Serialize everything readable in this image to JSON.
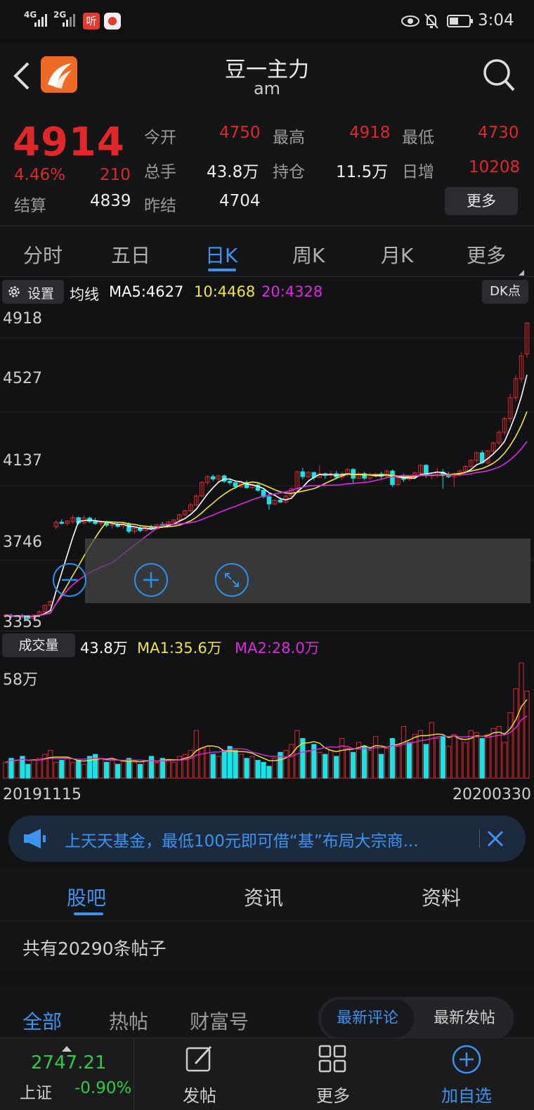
{
  "status_bar": {
    "signal_a": "4G",
    "signal_b": "2G",
    "app_badge": "听",
    "time": "3:04"
  },
  "header": {
    "title": "豆一主力",
    "subtitle": "am"
  },
  "quote": {
    "price": "4914",
    "change_pct": "4.46%",
    "change": "210",
    "settle_label": "结算",
    "settle": "4839",
    "open_label": "今开",
    "open": "4750",
    "high_label": "最高",
    "high": "4918",
    "low_label": "最低",
    "low": "4730",
    "volume_label": "总手",
    "volume": "43.8万",
    "oi_label": "持仓",
    "oi": "11.5万",
    "daily_inc_label": "日增",
    "daily_inc": "10208",
    "prev_settle_label": "昨结",
    "prev_settle": "4704",
    "more_label": "更多"
  },
  "tabs": [
    {
      "label": "分时"
    },
    {
      "label": "五日"
    },
    {
      "label": "日K"
    },
    {
      "label": "周K"
    },
    {
      "label": "月K"
    },
    {
      "label": "更多"
    }
  ],
  "ma_bar": {
    "settings_label": "设置",
    "ma_label": "均线",
    "ma5": "MA5:4627",
    "ma10": "10:4468",
    "ma20": "20:4328",
    "dk_label": "DK点"
  },
  "price_axis": [
    "4918",
    "4527",
    "4137",
    "3746",
    "3355"
  ],
  "volume_bar": {
    "label": "成交量",
    "value": "43.8万",
    "ma1": "MA1:35.6万",
    "ma2": "MA2:28.0万",
    "axis_max": "58万"
  },
  "date_axis": {
    "start": "20191115",
    "end": "20200330"
  },
  "banner": {
    "text": "上天天基金，最低100元即可借“基”布局大宗商..."
  },
  "section_tabs": [
    {
      "label": "股吧"
    },
    {
      "label": "资讯"
    },
    {
      "label": "资料"
    }
  ],
  "post_count": "共有20290条帖子",
  "filter": {
    "all": "全部",
    "hot": "热帖",
    "wealth": "财富号",
    "latest_comment": "最新评论",
    "latest_post": "最新发帖"
  },
  "bottom_nav": {
    "index_value": "2747.21",
    "index_name": "上证",
    "index_change": "-0.90%",
    "post": "发帖",
    "more": "更多",
    "add": "加自选"
  },
  "colors": {
    "up": "#e0272a",
    "down": "#19e3e6",
    "ma5": "#ffffff",
    "ma10": "#f3e531",
    "ma20": "#e028e0",
    "accent": "#2e8fe8"
  },
  "chart_data": {
    "type": "candlestick",
    "ylim": [
      3330,
      4960
    ],
    "x": {
      "start": "20191115",
      "end": "20200330"
    },
    "candles": [
      [
        3372,
        3380,
        3360,
        3375
      ],
      [
        3372,
        3382,
        3360,
        3368
      ],
      [
        3368,
        3376,
        3358,
        3372
      ],
      [
        3372,
        3380,
        3360,
        3366
      ],
      [
        3366,
        3374,
        3352,
        3356
      ],
      [
        3356,
        3378,
        3350,
        3374
      ],
      [
        3374,
        3400,
        3366,
        3392
      ],
      [
        3392,
        3430,
        3388,
        3426
      ],
      [
        3426,
        3452,
        3420,
        3446
      ],
      [
        3840,
        3875,
        3826,
        3864
      ],
      [
        3864,
        3880,
        3852,
        3858
      ],
      [
        3858,
        3874,
        3846,
        3870
      ],
      [
        3868,
        3902,
        3856,
        3888
      ],
      [
        3888,
        3892,
        3850,
        3860
      ],
      [
        3860,
        3900,
        3852,
        3886
      ],
      [
        3886,
        3894,
        3860,
        3868
      ],
      [
        3868,
        3888,
        3850,
        3858
      ],
      [
        3858,
        3872,
        3844,
        3866
      ],
      [
        3866,
        3872,
        3838,
        3848
      ],
      [
        3848,
        3860,
        3830,
        3852
      ],
      [
        3852,
        3864,
        3836,
        3842
      ],
      [
        3842,
        3858,
        3830,
        3856
      ],
      [
        3856,
        3864,
        3806,
        3816
      ],
      [
        3816,
        3836,
        3802,
        3832
      ],
      [
        3832,
        3846,
        3812,
        3820
      ],
      [
        3820,
        3842,
        3816,
        3838
      ],
      [
        3838,
        3850,
        3822,
        3830
      ],
      [
        3830,
        3856,
        3826,
        3852
      ],
      [
        3852,
        3866,
        3836,
        3848
      ],
      [
        3848,
        3870,
        3844,
        3866
      ],
      [
        3866,
        3880,
        3860,
        3876
      ],
      [
        3876,
        3908,
        3866,
        3904
      ],
      [
        3904,
        3930,
        3896,
        3924
      ],
      [
        3924,
        3966,
        3916,
        3956
      ],
      [
        3956,
        4010,
        3950,
        4002
      ],
      [
        4002,
        4080,
        3996,
        4074
      ],
      [
        4074,
        4112,
        4060,
        4104
      ],
      [
        4104,
        4116,
        4080,
        4092
      ],
      [
        4092,
        4114,
        4070,
        4108
      ],
      [
        4108,
        4116,
        4070,
        4080
      ],
      [
        4080,
        4098,
        4060,
        4072
      ],
      [
        4072,
        4084,
        4040,
        4052
      ],
      [
        4052,
        4080,
        4044,
        4074
      ],
      [
        4074,
        4084,
        4040,
        4046
      ],
      [
        4046,
        4070,
        4040,
        4060
      ],
      [
        4060,
        4074,
        4024,
        4032
      ],
      [
        4032,
        4040,
        3990,
        3998
      ],
      [
        3998,
        4020,
        3930,
        3960
      ],
      [
        3960,
        3984,
        3954,
        3980
      ],
      [
        3980,
        3996,
        3966,
        3970
      ],
      [
        3970,
        4010,
        3962,
        4002
      ],
      [
        4002,
        4048,
        3996,
        4040
      ],
      [
        4040,
        4136,
        4032,
        4130
      ],
      [
        4130,
        4150,
        4090,
        4104
      ],
      [
        4104,
        4134,
        4098,
        4126
      ],
      [
        4126,
        4130,
        4084,
        4100
      ],
      [
        4100,
        4166,
        4096,
        4120
      ],
      [
        4120,
        4126,
        4092,
        4112
      ],
      [
        4112,
        4136,
        4096,
        4120
      ],
      [
        4120,
        4134,
        4090,
        4102
      ],
      [
        4102,
        4130,
        4088,
        4120
      ],
      [
        4120,
        4150,
        4104,
        4142
      ],
      [
        4142,
        4150,
        4070,
        4096
      ],
      [
        4096,
        4128,
        4090,
        4120
      ],
      [
        4120,
        4130,
        4084,
        4096
      ],
      [
        4096,
        4126,
        4088,
        4112
      ],
      [
        4112,
        4126,
        4100,
        4118
      ],
      [
        4118,
        4130,
        4090,
        4106
      ],
      [
        4106,
        4142,
        4100,
        4134
      ],
      [
        4134,
        4142,
        4050,
        4062
      ],
      [
        4062,
        4104,
        4056,
        4098
      ],
      [
        4098,
        4120,
        4076,
        4090
      ],
      [
        4090,
        4106,
        4082,
        4102
      ],
      [
        4102,
        4130,
        4096,
        4124
      ],
      [
        4124,
        4170,
        4116,
        4164
      ],
      [
        4164,
        4170,
        4098,
        4112
      ],
      [
        4112,
        4120,
        4090,
        4114
      ],
      [
        4114,
        4150,
        4100,
        4128
      ],
      [
        4128,
        4144,
        4040,
        4112
      ],
      [
        4112,
        4130,
        4096,
        4104
      ],
      [
        4104,
        4126,
        4050,
        4120
      ],
      [
        4120,
        4140,
        4108,
        4134
      ],
      [
        4134,
        4164,
        4126,
        4158
      ],
      [
        4158,
        4196,
        4150,
        4190
      ],
      [
        4190,
        4236,
        4176,
        4230
      ],
      [
        4230,
        4244,
        4170,
        4178
      ],
      [
        4178,
        4246,
        4170,
        4240
      ],
      [
        4240,
        4290,
        4228,
        4282
      ],
      [
        4282,
        4350,
        4270,
        4338
      ],
      [
        4338,
        4420,
        4320,
        4410
      ],
      [
        4410,
        4540,
        4390,
        4520
      ],
      [
        4520,
        4640,
        4500,
        4620
      ],
      [
        4620,
        4760,
        4600,
        4740
      ],
      [
        4750,
        4918,
        4730,
        4914
      ]
    ],
    "volumes_wan": [
      8,
      10,
      9,
      11,
      7,
      9,
      10,
      12,
      14,
      8,
      9,
      10,
      8,
      9,
      7,
      11,
      12,
      10,
      8,
      9,
      7,
      9,
      10,
      8,
      7,
      9,
      11,
      8,
      10,
      9,
      8,
      11,
      12,
      14,
      24,
      15,
      16,
      12,
      11,
      14,
      16,
      14,
      12,
      10,
      11,
      9,
      8,
      6,
      10,
      13,
      14,
      17,
      24,
      20,
      14,
      17,
      13,
      12,
      14,
      11,
      20,
      15,
      13,
      18,
      16,
      14,
      21,
      12,
      15,
      20,
      17,
      26,
      18,
      22,
      24,
      17,
      28,
      20,
      21,
      16,
      22,
      20,
      18,
      24,
      23,
      20,
      22,
      25,
      26,
      18,
      33,
      45,
      58,
      43.8
    ],
    "volume_up": [
      1,
      0,
      1,
      0,
      0,
      1,
      1,
      1,
      1,
      1,
      0,
      1,
      1,
      0,
      1,
      0,
      0,
      1,
      0,
      1,
      0,
      1,
      0,
      1,
      0,
      1,
      0,
      1,
      0,
      1,
      1,
      1,
      1,
      1,
      1,
      1,
      1,
      0,
      1,
      0,
      0,
      0,
      1,
      0,
      1,
      0,
      0,
      0,
      1,
      0,
      1,
      1,
      1,
      0,
      1,
      0,
      1,
      0,
      1,
      0,
      1,
      1,
      0,
      1,
      0,
      1,
      1,
      0,
      1,
      0,
      1,
      1,
      0,
      1,
      1,
      0,
      1,
      1,
      0,
      1,
      1,
      1,
      1,
      1,
      1,
      0,
      1,
      1,
      1,
      1,
      1,
      1,
      1,
      1
    ]
  }
}
